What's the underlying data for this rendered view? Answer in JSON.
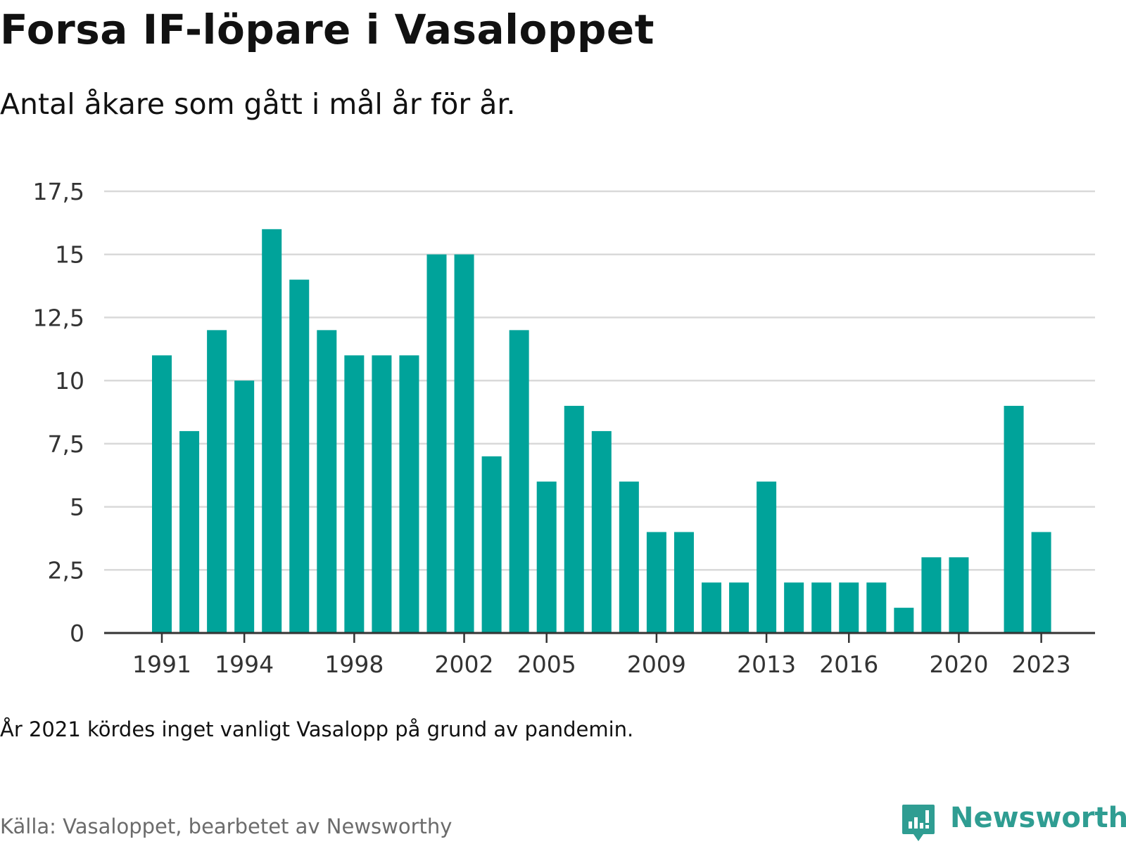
{
  "title": "Forsa IF-löpare i Vasaloppet",
  "subtitle": "Antal åkare som gått i mål år för år.",
  "note": "År 2021 kördes inget vanligt Vasalopp på grund av pandemin.",
  "source": "Källa: Vasaloppet, bearbetet av Newsworthy",
  "logo": {
    "text": "Newsworthy",
    "icon": "bar-chart-speech-bubble-icon",
    "color": "#2f9d92"
  },
  "colors": {
    "bar": "#00a39a",
    "grid": "#d9d9d9",
    "axis": "#333333"
  },
  "chart_data": {
    "type": "bar",
    "title": "Forsa IF-löpare i Vasaloppet",
    "subtitle": "Antal åkare som gått i mål år för år.",
    "xlabel": "",
    "ylabel": "",
    "ylim": [
      0,
      17.5
    ],
    "yticks": [
      "0",
      "2,5",
      "5",
      "7,5",
      "10",
      "12,5",
      "15",
      "17,5"
    ],
    "ytick_values": [
      0,
      2.5,
      5,
      7.5,
      10,
      12.5,
      15,
      17.5
    ],
    "xticks": [
      "1991",
      "1994",
      "1998",
      "2002",
      "2005",
      "2009",
      "2013",
      "2016",
      "2020",
      "2023"
    ],
    "grid": true,
    "categories": [
      "1991",
      "1992",
      "1993",
      "1994",
      "1995",
      "1996",
      "1997",
      "1998",
      "1999",
      "2000",
      "2001",
      "2002",
      "2003",
      "2004",
      "2005",
      "2006",
      "2007",
      "2008",
      "2009",
      "2010",
      "2011",
      "2012",
      "2013",
      "2014",
      "2015",
      "2016",
      "2017",
      "2018",
      "2019",
      "2020",
      "2021",
      "2022",
      "2023"
    ],
    "values": [
      11,
      8,
      12,
      10,
      16,
      14,
      12,
      11,
      11,
      11,
      15,
      15,
      7,
      12,
      6,
      9,
      8,
      6,
      4,
      4,
      2,
      2,
      6,
      2,
      2,
      2,
      2,
      1,
      3,
      3,
      null,
      9,
      4
    ]
  }
}
